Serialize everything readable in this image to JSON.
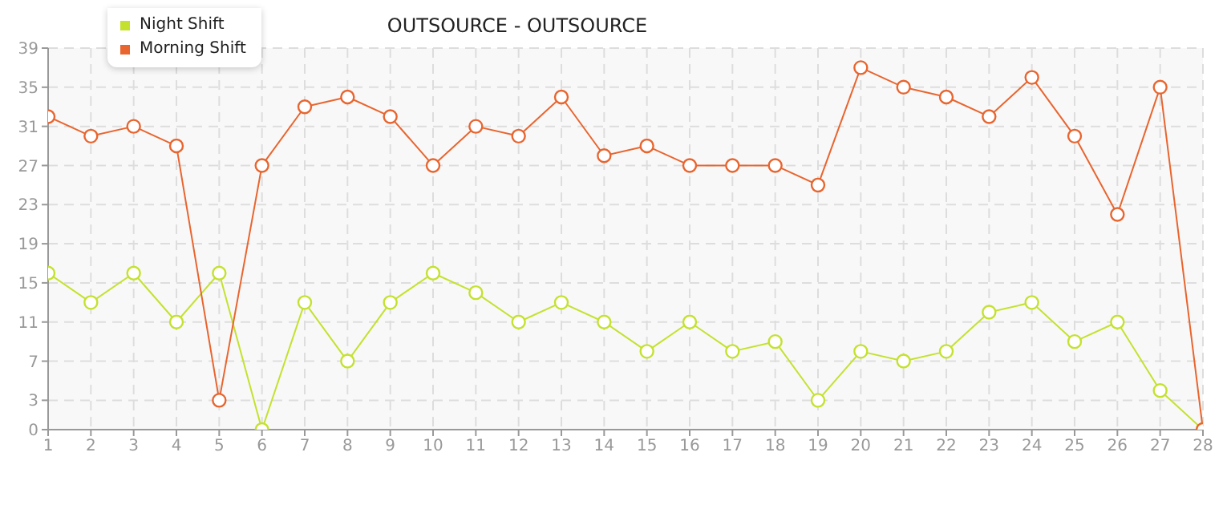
{
  "chart_data": {
    "type": "line",
    "title": "OUTSOURCE - OUTSOURCE",
    "x": [
      1,
      2,
      3,
      4,
      5,
      6,
      7,
      8,
      9,
      10,
      11,
      12,
      13,
      14,
      15,
      16,
      17,
      18,
      19,
      20,
      21,
      22,
      23,
      24,
      25,
      26,
      27,
      28
    ],
    "series": [
      {
        "name": "Night Shift",
        "color": "#c5e12f",
        "values": [
          16,
          13,
          16,
          11,
          16,
          0,
          13,
          7,
          13,
          16,
          14,
          11,
          13,
          11,
          8,
          11,
          8,
          9,
          3,
          8,
          7,
          8,
          12,
          13,
          9,
          11,
          4,
          0
        ]
      },
      {
        "name": "Morning Shift",
        "color": "#e8652f",
        "values": [
          32,
          30,
          31,
          29,
          3,
          27,
          33,
          34,
          32,
          27,
          31,
          30,
          34,
          28,
          29,
          27,
          27,
          27,
          25,
          37,
          35,
          34,
          32,
          36,
          30,
          22,
          35,
          0
        ]
      }
    ],
    "xlim": [
      1,
      28
    ],
    "xticks": [
      1,
      2,
      3,
      4,
      5,
      6,
      7,
      8,
      9,
      10,
      11,
      12,
      13,
      14,
      15,
      16,
      17,
      18,
      19,
      20,
      21,
      22,
      23,
      24,
      25,
      26,
      27,
      28
    ],
    "ylim": [
      0,
      39
    ],
    "yticks": [
      0,
      3,
      7,
      11,
      15,
      19,
      23,
      27,
      31,
      35,
      39
    ],
    "grid": true,
    "legend": "top left",
    "marker": "circle",
    "line_style": "solid"
  }
}
